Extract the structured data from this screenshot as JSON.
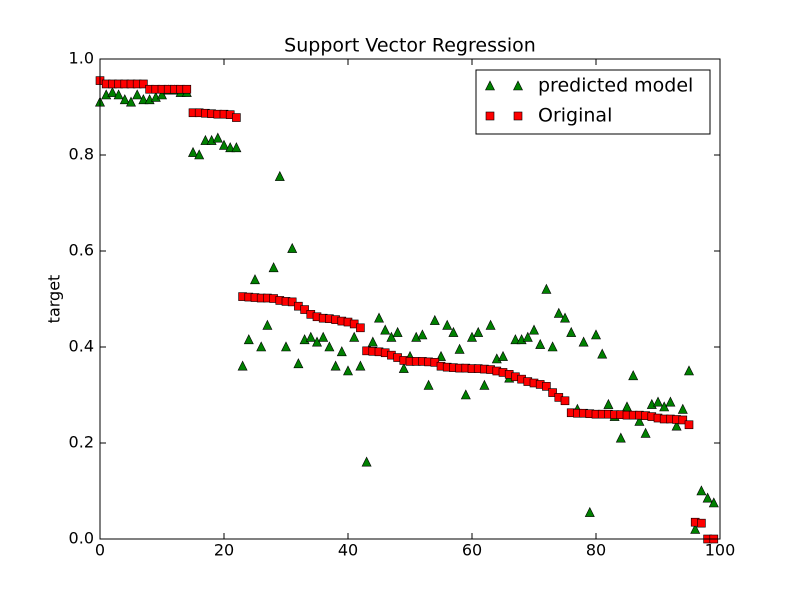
{
  "chart_data": {
    "type": "scatter",
    "title": "Support Vector Regression",
    "y_label": "target",
    "x": [
      0,
      1,
      2,
      3,
      4,
      5,
      6,
      7,
      8,
      9,
      10,
      11,
      12,
      13,
      14,
      15,
      16,
      17,
      18,
      19,
      20,
      21,
      22,
      23,
      24,
      25,
      26,
      27,
      28,
      29,
      30,
      31,
      32,
      33,
      34,
      35,
      36,
      37,
      38,
      39,
      40,
      41,
      42,
      43,
      44,
      45,
      46,
      47,
      48,
      49,
      50,
      51,
      52,
      53,
      54,
      55,
      56,
      57,
      58,
      59,
      60,
      61,
      62,
      63,
      64,
      65,
      66,
      67,
      68,
      69,
      70,
      71,
      72,
      73,
      74,
      75,
      76,
      77,
      78,
      79,
      80,
      81,
      82,
      83,
      84,
      85,
      86,
      87,
      88,
      89,
      90,
      91,
      92,
      93,
      94,
      95,
      96,
      97,
      98,
      99
    ],
    "series": [
      {
        "name": "predicted model",
        "color": "#008000",
        "marker": "triangle",
        "values": [
          0.91,
          0.925,
          0.93,
          0.925,
          0.915,
          0.91,
          0.925,
          0.915,
          0.915,
          0.92,
          0.925,
          0.935,
          0.935,
          0.93,
          0.93,
          0.805,
          0.8,
          0.83,
          0.83,
          0.835,
          0.82,
          0.815,
          0.815,
          0.36,
          0.415,
          0.54,
          0.4,
          0.445,
          0.565,
          0.755,
          0.4,
          0.605,
          0.365,
          0.415,
          0.42,
          0.41,
          0.42,
          0.4,
          0.36,
          0.39,
          0.35,
          0.42,
          0.36,
          0.16,
          0.41,
          0.46,
          0.435,
          0.42,
          0.43,
          0.355,
          0.38,
          0.42,
          0.425,
          0.32,
          0.455,
          0.38,
          0.445,
          0.43,
          0.395,
          0.3,
          0.42,
          0.43,
          0.32,
          0.445,
          0.375,
          0.38,
          0.335,
          0.415,
          0.415,
          0.42,
          0.435,
          0.405,
          0.52,
          0.4,
          0.47,
          0.46,
          0.43,
          0.27,
          0.41,
          0.055,
          0.425,
          0.385,
          0.28,
          0.255,
          0.21,
          0.275,
          0.34,
          0.245,
          0.22,
          0.28,
          0.285,
          0.275,
          0.285,
          0.235,
          0.27,
          0.35,
          0.02,
          0.1,
          0.085,
          0.075
        ]
      },
      {
        "name": "Original",
        "color": "#ff0000",
        "marker": "square",
        "values": [
          0.955,
          0.948,
          0.948,
          0.948,
          0.948,
          0.948,
          0.948,
          0.948,
          0.937,
          0.937,
          0.937,
          0.937,
          0.937,
          0.937,
          0.937,
          0.888,
          0.888,
          0.887,
          0.886,
          0.885,
          0.885,
          0.884,
          0.878,
          0.505,
          0.504,
          0.503,
          0.502,
          0.502,
          0.501,
          0.497,
          0.495,
          0.494,
          0.485,
          0.478,
          0.468,
          0.463,
          0.46,
          0.459,
          0.457,
          0.454,
          0.452,
          0.448,
          0.44,
          0.392,
          0.391,
          0.39,
          0.388,
          0.383,
          0.378,
          0.372,
          0.37,
          0.37,
          0.37,
          0.369,
          0.368,
          0.36,
          0.358,
          0.357,
          0.356,
          0.356,
          0.355,
          0.355,
          0.354,
          0.353,
          0.35,
          0.347,
          0.343,
          0.338,
          0.333,
          0.328,
          0.325,
          0.322,
          0.318,
          0.305,
          0.295,
          0.288,
          0.263,
          0.262,
          0.262,
          0.261,
          0.26,
          0.26,
          0.26,
          0.259,
          0.259,
          0.258,
          0.258,
          0.258,
          0.257,
          0.255,
          0.252,
          0.25,
          0.25,
          0.249,
          0.248,
          0.238,
          0.035,
          0.033,
          0,
          0
        ]
      }
    ],
    "xlim": [
      0,
      100
    ],
    "xticks": [
      0,
      20,
      40,
      60,
      80,
      100
    ],
    "ylim": [
      0,
      1
    ],
    "yticks": [
      {
        "value": 0,
        "label": "0.0"
      },
      0.2,
      0.4,
      0.6,
      0.8,
      {
        "value": 1,
        "label": "1.0"
      }
    ],
    "legend": "upper right"
  }
}
